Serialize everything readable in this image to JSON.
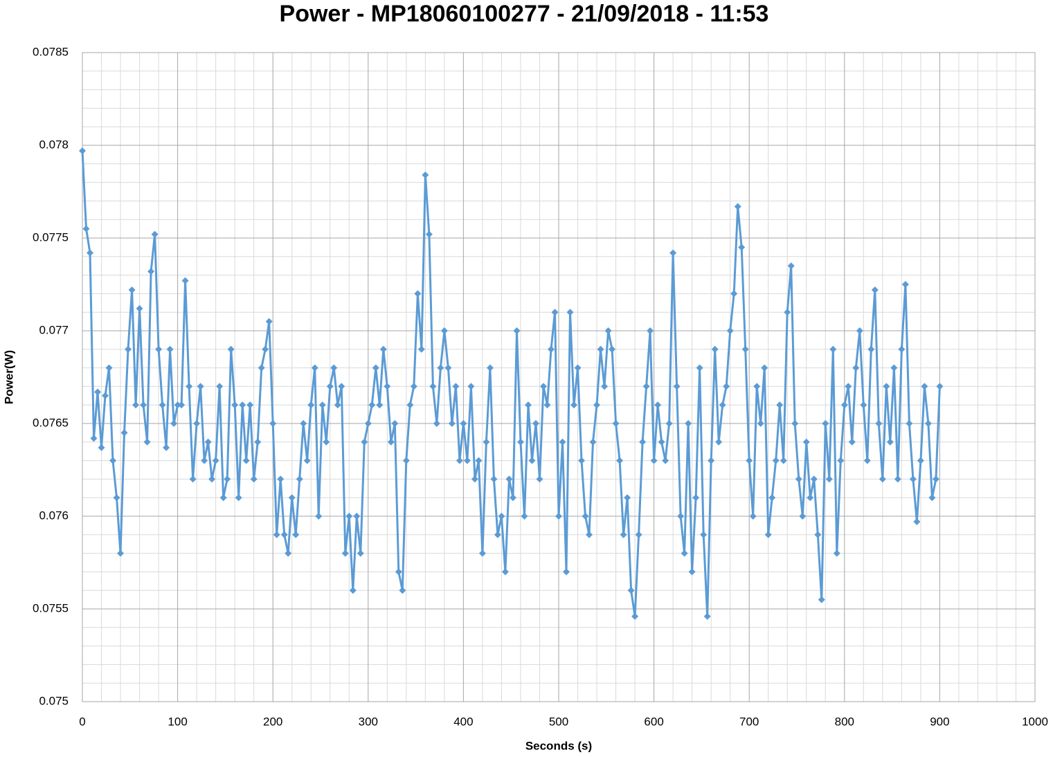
{
  "chart_data": {
    "type": "line",
    "title": "Power - MP18060100277 - 21/09/2018 - 11:53",
    "xlabel": "Seconds (s)",
    "ylabel": "Power(W)",
    "xlim": [
      0,
      1000
    ],
    "xticks": [
      0,
      100,
      200,
      300,
      400,
      500,
      600,
      700,
      800,
      900,
      1000
    ],
    "ylim": [
      0.075,
      0.0785
    ],
    "yticks": [
      0.075,
      0.0755,
      0.076,
      0.0765,
      0.077,
      0.0775,
      0.078,
      0.0785
    ],
    "grid": true,
    "minor_grid": true,
    "marker": "diamond",
    "color": "#5b9bd5",
    "x": [
      0,
      4,
      8,
      12,
      16,
      20,
      24,
      28,
      32,
      36,
      40,
      44,
      48,
      52,
      56,
      60,
      64,
      68,
      72,
      76,
      80,
      84,
      88,
      92,
      96,
      100,
      104,
      108,
      112,
      116,
      120,
      124,
      128,
      132,
      136,
      140,
      144,
      148,
      152,
      156,
      160,
      164,
      168,
      172,
      176,
      180,
      184,
      188,
      192,
      196,
      200,
      204,
      208,
      212,
      216,
      220,
      224,
      228,
      232,
      236,
      240,
      244,
      248,
      252,
      256,
      260,
      264,
      268,
      272,
      276,
      280,
      284,
      288,
      292,
      296,
      300,
      304,
      308,
      312,
      316,
      320,
      324,
      328,
      332,
      336,
      340,
      344,
      348,
      352,
      356,
      360,
      364,
      368,
      372,
      376,
      380,
      384,
      388,
      392,
      396,
      400,
      404,
      408,
      412,
      416,
      420,
      424,
      428,
      432,
      436,
      440,
      444,
      448,
      452,
      456,
      460,
      464,
      468,
      472,
      476,
      480,
      484,
      488,
      492,
      496,
      500,
      504,
      508,
      512,
      516,
      520,
      524,
      528,
      532,
      536,
      540,
      544,
      548,
      552,
      556,
      560,
      564,
      568,
      572,
      576,
      580,
      584,
      588,
      592,
      596,
      600,
      604,
      608,
      612,
      616,
      620,
      624,
      628,
      632,
      636,
      640,
      644,
      648,
      652,
      656,
      660,
      664,
      668,
      672,
      676,
      680,
      684,
      688,
      692,
      696,
      700,
      704,
      708,
      712,
      716,
      720,
      724,
      728,
      732,
      736,
      740,
      744,
      748,
      752,
      756,
      760,
      764,
      768,
      772,
      776,
      780,
      784,
      788,
      792,
      796,
      800,
      804,
      808,
      812,
      816,
      820,
      824,
      828,
      832,
      836,
      840,
      844,
      848,
      852,
      856,
      860,
      864,
      868,
      872,
      876,
      880,
      884,
      888,
      892,
      896,
      900
    ],
    "values": [
      0.07797,
      0.07755,
      0.07742,
      0.07642,
      0.07667,
      0.07637,
      0.07665,
      0.0768,
      0.0763,
      0.0761,
      0.0758,
      0.07645,
      0.0769,
      0.07722,
      0.0766,
      0.07712,
      0.0766,
      0.0764,
      0.07732,
      0.07752,
      0.0769,
      0.0766,
      0.07637,
      0.0769,
      0.0765,
      0.0766,
      0.0766,
      0.07727,
      0.0767,
      0.0762,
      0.0765,
      0.0767,
      0.0763,
      0.0764,
      0.0762,
      0.0763,
      0.0767,
      0.0761,
      0.0762,
      0.0769,
      0.0766,
      0.0761,
      0.0766,
      0.0763,
      0.0766,
      0.0762,
      0.0764,
      0.0768,
      0.0769,
      0.07705,
      0.0765,
      0.0759,
      0.0762,
      0.0759,
      0.0758,
      0.0761,
      0.0759,
      0.0762,
      0.0765,
      0.0763,
      0.0766,
      0.0768,
      0.076,
      0.0766,
      0.0764,
      0.0767,
      0.0768,
      0.0766,
      0.0767,
      0.0758,
      0.076,
      0.0756,
      0.076,
      0.0758,
      0.0764,
      0.0765,
      0.0766,
      0.0768,
      0.0766,
      0.0769,
      0.0767,
      0.0764,
      0.0765,
      0.0757,
      0.0756,
      0.0763,
      0.0766,
      0.0767,
      0.0772,
      0.0769,
      0.07784,
      0.07752,
      0.0767,
      0.0765,
      0.0768,
      0.077,
      0.0768,
      0.0765,
      0.0767,
      0.0763,
      0.0765,
      0.0763,
      0.0767,
      0.0762,
      0.0763,
      0.0758,
      0.0764,
      0.0768,
      0.0762,
      0.0759,
      0.076,
      0.0757,
      0.0762,
      0.0761,
      0.077,
      0.0764,
      0.076,
      0.0766,
      0.0763,
      0.0765,
      0.0762,
      0.0767,
      0.0766,
      0.0769,
      0.0771,
      0.076,
      0.0764,
      0.0757,
      0.0771,
      0.0766,
      0.0768,
      0.0763,
      0.076,
      0.0759,
      0.0764,
      0.0766,
      0.0769,
      0.0767,
      0.077,
      0.0769,
      0.0765,
      0.0763,
      0.0759,
      0.0761,
      0.0756,
      0.07546,
      0.0759,
      0.0764,
      0.0767,
      0.077,
      0.0763,
      0.0766,
      0.0764,
      0.0763,
      0.0765,
      0.07742,
      0.0767,
      0.076,
      0.0758,
      0.0765,
      0.0757,
      0.0761,
      0.0768,
      0.0759,
      0.07546,
      0.0763,
      0.0769,
      0.0764,
      0.0766,
      0.0767,
      0.077,
      0.0772,
      0.07767,
      0.07745,
      0.0769,
      0.0763,
      0.076,
      0.0767,
      0.0765,
      0.0768,
      0.0759,
      0.0761,
      0.0763,
      0.0766,
      0.0763,
      0.0771,
      0.07735,
      0.0765,
      0.0762,
      0.076,
      0.0764,
      0.0761,
      0.0762,
      0.0759,
      0.07555,
      0.0765,
      0.0762,
      0.0769,
      0.0758,
      0.0763,
      0.0766,
      0.0767,
      0.0764,
      0.0768,
      0.077,
      0.0766,
      0.0763,
      0.0769,
      0.07722,
      0.0765,
      0.0762,
      0.0767,
      0.0764,
      0.0768,
      0.0762,
      0.0769,
      0.07725,
      0.0765,
      0.0762,
      0.07597,
      0.0763,
      0.0767,
      0.0765,
      0.0761,
      0.0762,
      0.0767
    ]
  }
}
